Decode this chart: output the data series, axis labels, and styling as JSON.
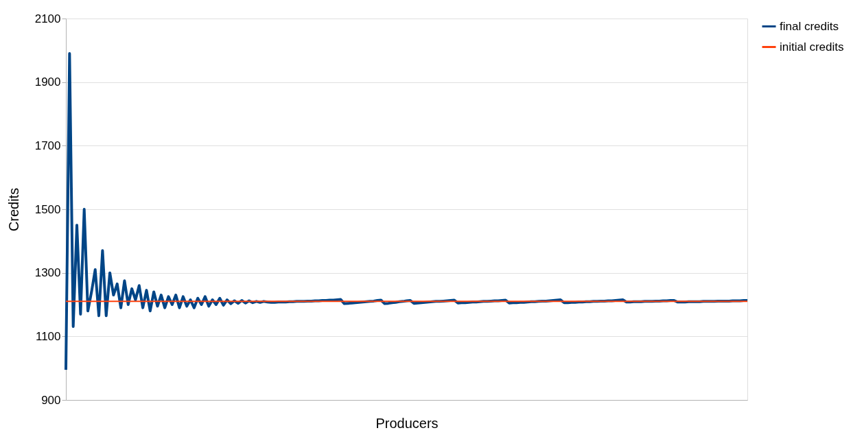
{
  "chart_data": {
    "type": "line",
    "xlabel": "Producers",
    "ylabel": "Credits",
    "categories": [
      null,
      null,
      null,
      null,
      null,
      null,
      null,
      null,
      null,
      null,
      null,
      null,
      null,
      null,
      null,
      null,
      null,
      null,
      null,
      null,
      null,
      null,
      null,
      null,
      null,
      null,
      null,
      null,
      null,
      null,
      null,
      null,
      null,
      null,
      null,
      null,
      null,
      null,
      null,
      null,
      null,
      null,
      null,
      null,
      null,
      null,
      null,
      null,
      null,
      null,
      null,
      null,
      null,
      null,
      null,
      null,
      null,
      null,
      null,
      null,
      null,
      null,
      null,
      null,
      null,
      null,
      null,
      null,
      null,
      null,
      null,
      null,
      null,
      null,
      null,
      null,
      null,
      null,
      null,
      null,
      null,
      null,
      null,
      null,
      null,
      null,
      null,
      null,
      null,
      null,
      null,
      null,
      null,
      null,
      null,
      null,
      null,
      null,
      null,
      null,
      null,
      null,
      null,
      null,
      null,
      null,
      null,
      null,
      null,
      null,
      null,
      null,
      null,
      null,
      null,
      null,
      null,
      null,
      null,
      null,
      null,
      null,
      null,
      null,
      null,
      null,
      null,
      null,
      null,
      null,
      null,
      null,
      null,
      null,
      null,
      null,
      null,
      null,
      null,
      null,
      null,
      null,
      null,
      null,
      null,
      null,
      null,
      null,
      null,
      null,
      null,
      null,
      null,
      null,
      null,
      null,
      null,
      null,
      null,
      null,
      null,
      null,
      null,
      null,
      null,
      null,
      null,
      null,
      null,
      null,
      null,
      null,
      null,
      null,
      null,
      null,
      null,
      null,
      null,
      null,
      null,
      null,
      null,
      null,
      null,
      null,
      null
    ],
    "series": [
      {
        "name": "final credits",
        "color": "#004586",
        "values": [
          995,
          1990,
          1131,
          1450,
          1170,
          1500,
          1180,
          1240,
          1310,
          1165,
          1370,
          1165,
          1300,
          1230,
          1265,
          1190,
          1275,
          1200,
          1250,
          1215,
          1260,
          1190,
          1245,
          1180,
          1240,
          1195,
          1230,
          1190,
          1225,
          1200,
          1230,
          1190,
          1225,
          1195,
          1215,
          1190,
          1220,
          1200,
          1225,
          1195,
          1215,
          1200,
          1220,
          1198,
          1215,
          1203,
          1212,
          1204,
          1213,
          1205,
          1212,
          1206,
          1210,
          1207,
          1210,
          1208,
          1207,
          1207,
          1208,
          1208,
          1208,
          1209,
          1209,
          1210,
          1210,
          1210,
          1211,
          1211,
          1212,
          1212,
          1213,
          1213,
          1214,
          1214,
          1215,
          1216,
          1203,
          1204,
          1205,
          1206,
          1207,
          1208,
          1209,
          1210,
          1211,
          1213,
          1214,
          1203,
          1204,
          1206,
          1207,
          1209,
          1210,
          1212,
          1213,
          1204,
          1205,
          1206,
          1207,
          1208,
          1209,
          1210,
          1210,
          1211,
          1212,
          1213,
          1214,
          1205,
          1206,
          1206,
          1207,
          1208,
          1208,
          1209,
          1210,
          1210,
          1211,
          1212,
          1212,
          1213,
          1214,
          1205,
          1206,
          1206,
          1207,
          1207,
          1208,
          1209,
          1209,
          1210,
          1211,
          1211,
          1212,
          1213,
          1214,
          1215,
          1206,
          1206,
          1207,
          1207,
          1208,
          1208,
          1209,
          1209,
          1210,
          1210,
          1211,
          1211,
          1212,
          1212,
          1213,
          1214,
          1215,
          1208,
          1208,
          1209,
          1209,
          1209,
          1210,
          1210,
          1210,
          1211,
          1211,
          1212,
          1212,
          1213,
          1213,
          1208,
          1208,
          1208,
          1209,
          1209,
          1209,
          1209,
          1210,
          1210,
          1210,
          1210,
          1211,
          1211,
          1211,
          1211,
          1212,
          1212,
          1212,
          1213,
          1213
        ]
      },
      {
        "name": "initial credits",
        "color": "#ff420e",
        "values": [
          1210,
          1210,
          1210,
          1210,
          1210,
          1210,
          1210,
          1210,
          1210,
          1210,
          1210,
          1210,
          1210,
          1210,
          1210,
          1210,
          1210,
          1210,
          1210,
          1210,
          1210,
          1210,
          1210,
          1210,
          1210,
          1210,
          1210,
          1210,
          1210,
          1210,
          1210,
          1210,
          1210,
          1210,
          1210,
          1210,
          1210,
          1210,
          1210,
          1210,
          1210,
          1210,
          1210,
          1210,
          1210,
          1210,
          1210,
          1210,
          1210,
          1210,
          1210,
          1210,
          1210,
          1210,
          1210,
          1210,
          1210,
          1210,
          1210,
          1210,
          1210,
          1210,
          1210,
          1210,
          1210,
          1210,
          1210,
          1210,
          1210,
          1210,
          1210,
          1210,
          1210,
          1210,
          1210,
          1210,
          1210,
          1210,
          1210,
          1210,
          1210,
          1210,
          1210,
          1210,
          1210,
          1210,
          1210,
          1210,
          1210,
          1210,
          1210,
          1210,
          1210,
          1210,
          1210,
          1210,
          1210,
          1210,
          1210,
          1210,
          1210,
          1210,
          1210,
          1210,
          1210,
          1210,
          1210,
          1210,
          1210,
          1210,
          1210,
          1210,
          1210,
          1210,
          1210,
          1210,
          1210,
          1210,
          1210,
          1210,
          1210,
          1210,
          1210,
          1210,
          1210,
          1210,
          1210,
          1210,
          1210,
          1210,
          1210,
          1210,
          1210,
          1210,
          1210,
          1210,
          1210,
          1210,
          1210,
          1210,
          1210,
          1210,
          1210,
          1210,
          1210,
          1210,
          1210,
          1210,
          1210,
          1210,
          1210,
          1210,
          1210,
          1210,
          1210,
          1210,
          1210,
          1210,
          1210,
          1210,
          1210,
          1210,
          1210,
          1210,
          1210,
          1210,
          1210,
          1210,
          1210,
          1210,
          1210,
          1210,
          1210,
          1210,
          1210,
          1210,
          1210,
          1210,
          1210,
          1210,
          1210,
          1210,
          1210,
          1210,
          1210,
          1210,
          1210
        ]
      }
    ],
    "ylim": [
      900,
      2100
    ],
    "yticks": [
      900,
      1100,
      1300,
      1500,
      1700,
      1900,
      2100
    ],
    "grid": "y",
    "legend": "right",
    "tick_labels": "y"
  }
}
